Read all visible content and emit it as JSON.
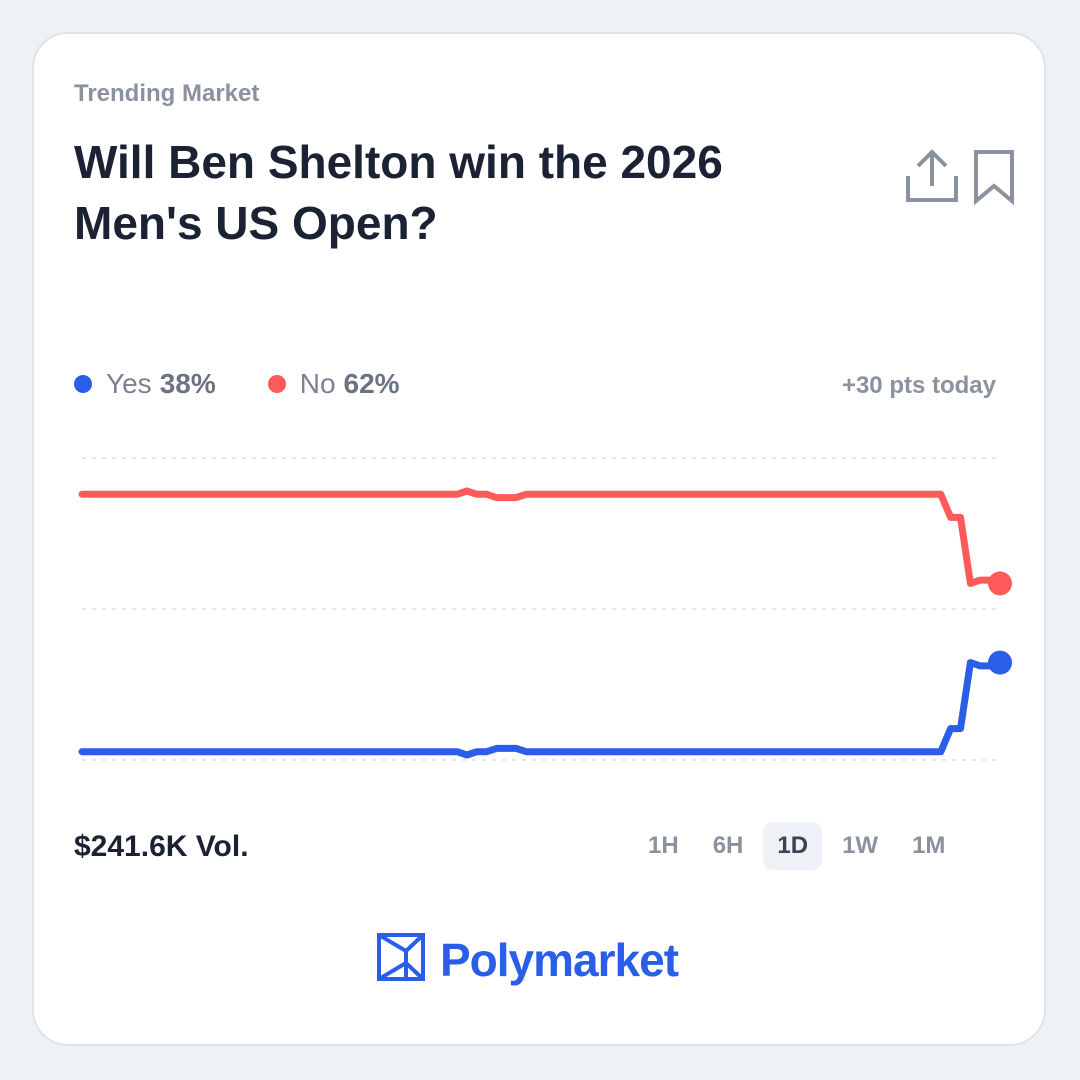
{
  "card": {
    "eyebrow": "Trending Market",
    "title": "Will Ben Shelton win the 2026 Men's US Open?"
  },
  "actions": [
    {
      "name": "share",
      "icon": "share-icon"
    },
    {
      "name": "bookmark",
      "icon": "bookmark-icon"
    }
  ],
  "legend": {
    "yes_label": "Yes",
    "yes_value": "38%",
    "no_label": "No",
    "no_value": "62%",
    "change": "+30 pts today"
  },
  "colors": {
    "yes": "#2a5ee8",
    "no": "#ff5a5a",
    "grid": "#e3e6ec"
  },
  "volume": "$241.6K Vol.",
  "ranges": {
    "options": [
      "1H",
      "6H",
      "1D",
      "1W",
      "1M"
    ],
    "selected": "1D"
  },
  "brand": {
    "name": "Polymarket",
    "icon": "polymarket-logo-icon"
  },
  "chart_data": {
    "type": "line",
    "grid": true,
    "ylim": [
      0,
      100
    ],
    "series": [
      {
        "name": "No",
        "values": [
          89,
          89,
          89,
          89,
          89,
          89,
          89,
          89,
          89,
          89,
          89,
          89,
          89,
          89,
          89,
          89,
          89,
          89,
          89,
          89,
          89,
          89,
          89,
          89,
          89,
          89,
          89,
          89,
          89,
          89,
          89,
          89,
          89,
          89,
          89,
          89,
          89,
          89,
          89,
          90,
          89,
          89,
          88,
          88,
          88,
          89,
          89,
          89,
          89,
          89,
          89,
          89,
          89,
          89,
          89,
          89,
          89,
          89,
          89,
          89,
          89,
          89,
          89,
          89,
          89,
          89,
          89,
          89,
          89,
          89,
          89,
          89,
          89,
          89,
          89,
          89,
          89,
          89,
          89,
          89,
          89,
          89,
          89,
          89,
          89,
          89,
          89,
          89,
          82,
          82,
          62,
          63,
          63,
          62
        ]
      },
      {
        "name": "Yes",
        "values": [
          11,
          11,
          11,
          11,
          11,
          11,
          11,
          11,
          11,
          11,
          11,
          11,
          11,
          11,
          11,
          11,
          11,
          11,
          11,
          11,
          11,
          11,
          11,
          11,
          11,
          11,
          11,
          11,
          11,
          11,
          11,
          11,
          11,
          11,
          11,
          11,
          11,
          11,
          11,
          10,
          11,
          11,
          12,
          12,
          12,
          11,
          11,
          11,
          11,
          11,
          11,
          11,
          11,
          11,
          11,
          11,
          11,
          11,
          11,
          11,
          11,
          11,
          11,
          11,
          11,
          11,
          11,
          11,
          11,
          11,
          11,
          11,
          11,
          11,
          11,
          11,
          11,
          11,
          11,
          11,
          11,
          11,
          11,
          11,
          11,
          11,
          11,
          11,
          18,
          18,
          38,
          37,
          37,
          38
        ]
      }
    ]
  }
}
